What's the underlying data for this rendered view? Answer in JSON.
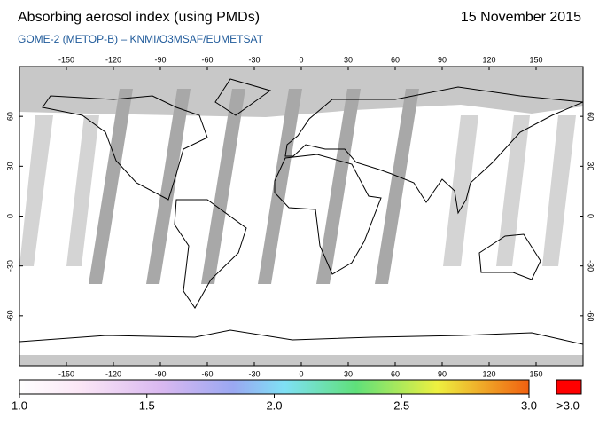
{
  "header": {
    "title": "Absorbing aerosol index (using PMDs)",
    "date": "15 November 2015",
    "subtitle": "GOME-2 (METOP-B)  –  KNMI/O3MSAF/EUMETSAT"
  },
  "map": {
    "lon_lim": [
      -180,
      180
    ],
    "lat_lim": [
      -90,
      90
    ],
    "lon_ticks": [
      -150,
      -120,
      -90,
      -60,
      -30,
      0,
      30,
      60,
      90,
      120,
      150
    ],
    "lat_ticks": [
      60,
      30,
      0,
      -30,
      -60
    ]
  },
  "colorbar": {
    "ticks": [
      {
        "value": 1,
        "label": "1.0"
      },
      {
        "value": 1.5,
        "label": "1.5"
      },
      {
        "value": 2,
        "label": "2.0"
      },
      {
        "value": 2.5,
        "label": "2.5"
      },
      {
        "value": 3,
        "label": "3.0"
      }
    ],
    "overflow_label": ">3.0"
  }
}
